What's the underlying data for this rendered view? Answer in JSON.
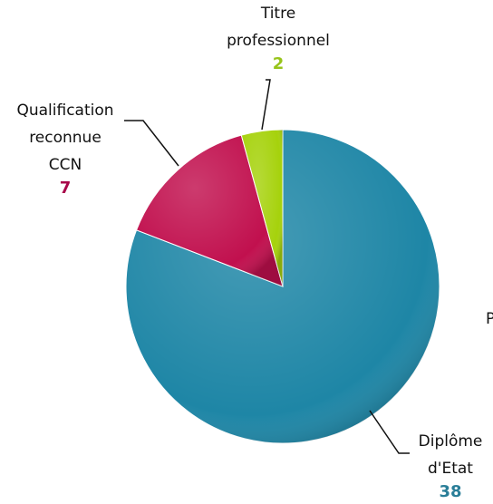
{
  "chart_data": {
    "type": "pie",
    "categories": [
      "Diplôme d'Etat",
      "Qualification reconnue CCN",
      "Titre professionnel"
    ],
    "values": [
      38,
      7,
      2
    ],
    "colors": [
      "#1e86a6",
      "#c1104e",
      "#a6d20c"
    ],
    "label_colors": [
      "#2a7e98",
      "#a8084a",
      "#97c41a"
    ],
    "annotations": [
      "P"
    ]
  }
}
